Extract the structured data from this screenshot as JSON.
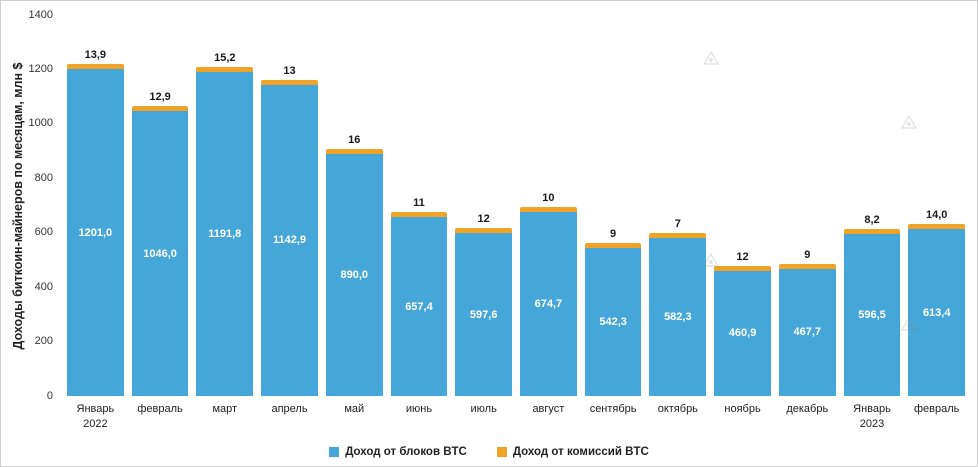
{
  "chart_data": {
    "type": "bar",
    "stacked": true,
    "title": "",
    "ylabel": "Доходы биткоин-майнеров по месяцам, млн $",
    "xlabel": "",
    "ylim": [
      0,
      1400
    ],
    "yticks": [
      0,
      200,
      400,
      600,
      800,
      1000,
      1200,
      1400
    ],
    "grid": false,
    "legend_position": "bottom",
    "categories": [
      {
        "line1": "Январь",
        "line2": "2022"
      },
      {
        "line1": "февраль",
        "line2": ""
      },
      {
        "line1": "март",
        "line2": ""
      },
      {
        "line1": "апрель",
        "line2": ""
      },
      {
        "line1": "май",
        "line2": ""
      },
      {
        "line1": "июнь",
        "line2": ""
      },
      {
        "line1": "июль",
        "line2": ""
      },
      {
        "line1": "август",
        "line2": ""
      },
      {
        "line1": "сентябрь",
        "line2": ""
      },
      {
        "line1": "октябрь",
        "line2": ""
      },
      {
        "line1": "ноябрь",
        "line2": ""
      },
      {
        "line1": "декабрь",
        "line2": ""
      },
      {
        "line1": "Январь",
        "line2": "2023"
      },
      {
        "line1": "февраль",
        "line2": ""
      }
    ],
    "series": [
      {
        "name": "Доход от блоков BTC",
        "color": "#45a6d9",
        "values": [
          1201.0,
          1046.0,
          1191.8,
          1142.9,
          890.0,
          657.4,
          597.6,
          674.7,
          542.3,
          582.3,
          460.9,
          467.7,
          596.5,
          613.4
        ],
        "labels": [
          "1201,0",
          "1046,0",
          "1191,8",
          "1142,9",
          "890,0",
          "657,4",
          "597,6",
          "674,7",
          "542,3",
          "582,3",
          "460,9",
          "467,7",
          "596,5",
          "613,4"
        ]
      },
      {
        "name": "Доход от комиссий BTC",
        "color": "#efa427",
        "values": [
          13.9,
          12.9,
          15.2,
          13,
          16,
          11,
          12,
          10,
          9,
          7,
          12,
          9,
          8.2,
          14.0
        ],
        "labels": [
          "13,9",
          "12,9",
          "15,2",
          "13",
          "16",
          "11",
          "12",
          "10",
          "9",
          "7",
          "12",
          "9",
          "8,2",
          "14,0"
        ]
      }
    ]
  },
  "colors": {
    "blocks": "#45a6d9",
    "fees": "#efa427"
  }
}
